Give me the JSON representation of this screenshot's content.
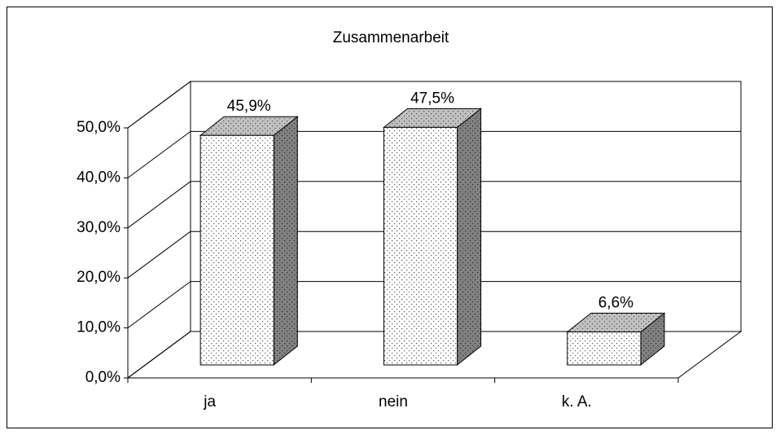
{
  "chart_data": {
    "type": "bar3d",
    "title": "Zusammenarbeit",
    "categories": [
      "ja",
      "nein",
      "k. A."
    ],
    "values": [
      45.9,
      47.5,
      6.6
    ],
    "value_labels": [
      "45,9%",
      "47,5%",
      "6,6%"
    ],
    "ylim": [
      0,
      50
    ],
    "yticks": [
      {
        "value": 0,
        "label": "0,0%"
      },
      {
        "value": 10,
        "label": "10,0%"
      },
      {
        "value": 20,
        "label": "20,0%"
      },
      {
        "value": 30,
        "label": "30,0%"
      },
      {
        "value": 40,
        "label": "40,0%"
      },
      {
        "value": 50,
        "label": "50,0%"
      }
    ],
    "grid": true
  }
}
